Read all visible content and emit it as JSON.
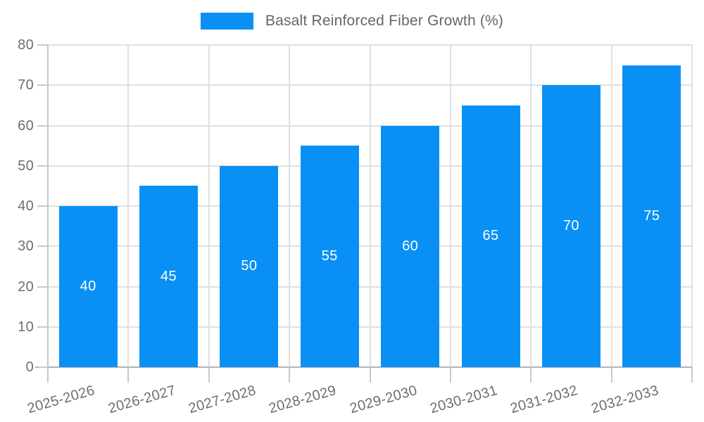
{
  "legend": {
    "label": "Basalt Reinforced Fiber Growth (%)"
  },
  "chart_data": {
    "type": "bar",
    "title": "Basalt Reinforced Fiber Growth (%)",
    "series_name": "Basalt Reinforced Fiber Growth (%)",
    "categories": [
      "2025-2026",
      "2026-2027",
      "2027-2028",
      "2028-2029",
      "2029-2030",
      "2030-2031",
      "2031-2032",
      "2032-2033"
    ],
    "values": [
      40,
      45,
      50,
      55,
      60,
      65,
      70,
      75
    ],
    "bar_value_labels": [
      "40",
      "45",
      "50",
      "55",
      "60",
      "65",
      "70",
      "75"
    ],
    "xlabel": "",
    "ylabel": "",
    "ylim": [
      0,
      80
    ],
    "yticks": [
      0,
      10,
      20,
      30,
      40,
      50,
      60,
      70,
      80
    ],
    "grid": true,
    "legend_position": "top-center",
    "x_label_rotation_deg": -16,
    "colors": {
      "bar": "#0a90f5",
      "bar_value_label": "#ffffff",
      "axis_tick_label": "#6e6e6e",
      "legend_text": "#666666",
      "gridline": "#e0e0e0",
      "x_axis_line": "#b3b3b3",
      "y_axis_line": "#c9c9c9",
      "tick_mark": "#c9c9c9",
      "background": "#ffffff"
    }
  }
}
